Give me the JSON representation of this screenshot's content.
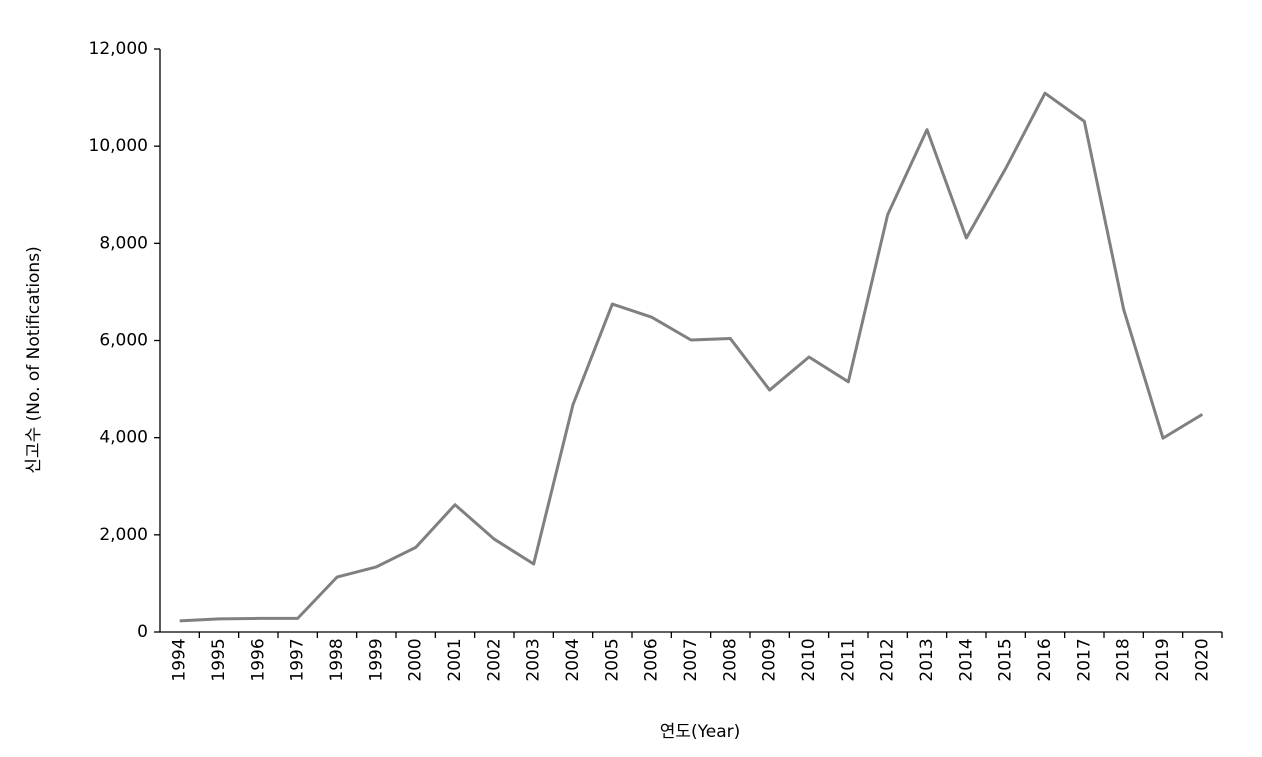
{
  "chart_data": {
    "type": "line",
    "xlabel": "연도(Year)",
    "ylabel": "신고수 (No. of Notifications)",
    "categories": [
      "1994",
      "1995",
      "1996",
      "1997",
      "1998",
      "1999",
      "2000",
      "2001",
      "2002",
      "2003",
      "2004",
      "2005",
      "2006",
      "2007",
      "2008",
      "2009",
      "2010",
      "2011",
      "2012",
      "2013",
      "2014",
      "2015",
      "2016",
      "2017",
      "2018",
      "2019",
      "2020"
    ],
    "series": [
      {
        "color": "#808080",
        "values": [
          230,
          270,
          280,
          280,
          1130,
          1340,
          1740,
          2620,
          1910,
          1400,
          4680,
          6750,
          6480,
          6010,
          6040,
          4980,
          5660,
          5150,
          8590,
          10340,
          8110,
          9540,
          11090,
          10510,
          6640,
          3990,
          4480
        ]
      }
    ],
    "ylim": [
      0,
      12000
    ],
    "yticks": [
      0,
      {
        "value": 2000,
        "label": "2,000"
      },
      {
        "value": 4000,
        "label": "4,000"
      },
      {
        "value": 6000,
        "label": "6,000"
      },
      {
        "value": 8000,
        "label": "8,000"
      },
      {
        "value": 10000,
        "label": "10,000"
      },
      {
        "value": 12000,
        "label": "12,000"
      }
    ],
    "grid": false
  }
}
